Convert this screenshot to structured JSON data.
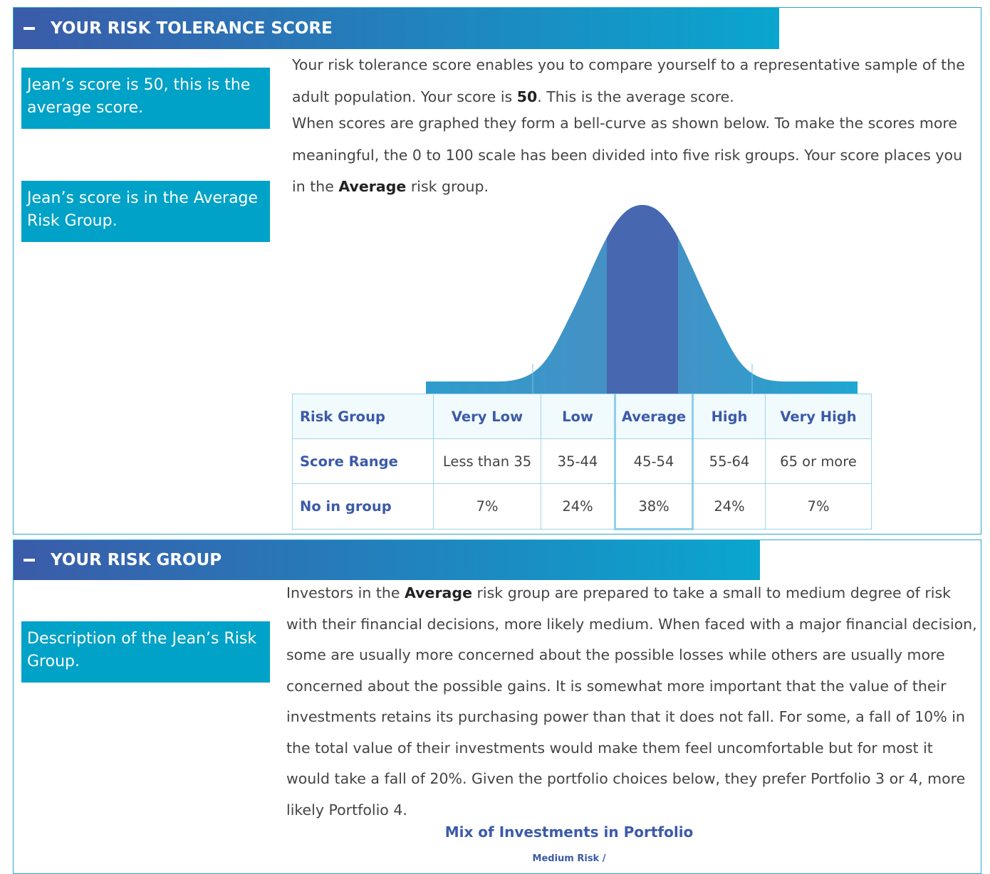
{
  "panel_1": {
    "header": "YOUR RISK TOLERANCE SCORE",
    "callouts": [
      "Jean’s score is 50, this is the average score.",
      "Jean’s score is in the Average Risk Group."
    ],
    "paragraph_1": {
      "before": "Your risk tolerance score enables you to compare yourself to a representative sample of the adult population. Your score is ",
      "bold": "50",
      "after": ". This is the average score."
    },
    "paragraph_2": {
      "before": "When scores are graphed they form a bell-curve as shown below. To make the scores more meaningful, the 0 to 100 scale has been divided into five risk groups. Your score places you in the ",
      "bold": "Average",
      "after": " risk group."
    },
    "table": {
      "rows": [
        [
          "Risk Group",
          "Very Low",
          "Low",
          "Average",
          "High",
          "Very High"
        ],
        [
          "Score Range",
          "Less than 35",
          "35-44",
          "45-54",
          "55-64",
          "65 or more"
        ],
        [
          "No in group",
          "7%",
          "24%",
          "38%",
          "24%",
          "7%"
        ]
      ]
    }
  },
  "panel_2": {
    "header": "YOUR RISK GROUP",
    "callouts": [
      "Description of the Jean’s Risk Group."
    ],
    "paragraph": {
      "before": "Investors in the ",
      "bold": "Average",
      "after": " risk group are prepared to take a small to medium degree of risk with their financial decisions, more likely medium. When faced with a major financial decision, some are usually more concerned about the possible losses while others are usually more concerned about the possible gains. It is somewhat more important that the value of their investments retains its purchasing power than that it does not fall. For some, a fall of 10% in the total value of their investments would make them feel uncomfortable but for most it would take a fall of 20%. Given the portfolio choices below, they prefer Portfolio 3 or 4, more likely Portfolio 4."
    },
    "chart_title": "Mix of Investments in Portfolio",
    "chart_subtitle": "Medium Risk /"
  }
}
